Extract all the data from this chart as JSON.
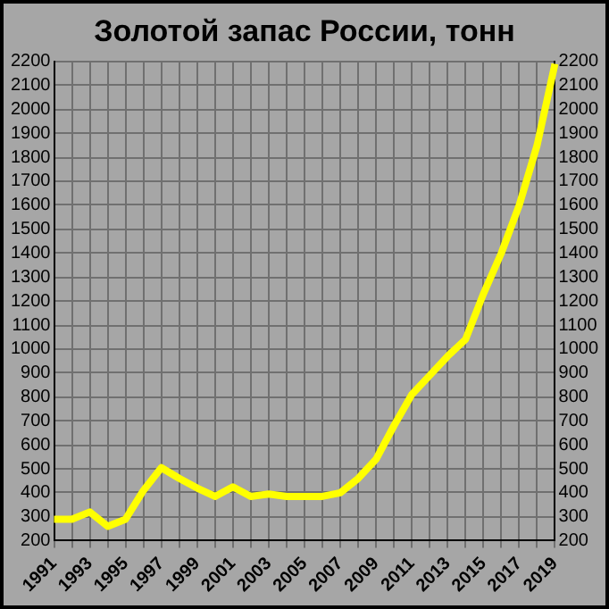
{
  "chart_data": {
    "type": "line",
    "title": "Золотой запас России, тонн",
    "categories": [
      "1991",
      null,
      "1993",
      null,
      "1995",
      null,
      "1997",
      null,
      "1999",
      null,
      "2001",
      null,
      "2003",
      null,
      "2005",
      null,
      "2007",
      null,
      "2009",
      null,
      "2011",
      null,
      "2013",
      null,
      "2015",
      null,
      "2017",
      null,
      "2019"
    ],
    "series": [
      {
        "color": "#ffff00",
        "values": [
          290,
          290,
          320,
          260,
          290,
          410,
          505,
          460,
          420,
          385,
          425,
          385,
          395,
          385,
          385,
          385,
          400,
          460,
          540,
          680,
          810,
          890,
          970,
          1040,
          1230,
          1400,
          1600,
          1850,
          2190
        ]
      }
    ],
    "ylim": [
      200,
      2200
    ],
    "yticks": [
      200,
      300,
      400,
      500,
      600,
      700,
      800,
      900,
      1000,
      1100,
      1200,
      1300,
      1400,
      1500,
      1600,
      1700,
      1800,
      1900,
      2000,
      2100,
      2200
    ],
    "y2lim": [
      200,
      2200
    ],
    "y2ticks": [
      200,
      300,
      400,
      500,
      600,
      700,
      800,
      900,
      1000,
      1100,
      1200,
      1300,
      1400,
      1500,
      1600,
      1700,
      1800,
      1900,
      2000,
      2100,
      2200
    ],
    "grid": true,
    "legend": false,
    "marker": "none",
    "line_style": "solid"
  }
}
